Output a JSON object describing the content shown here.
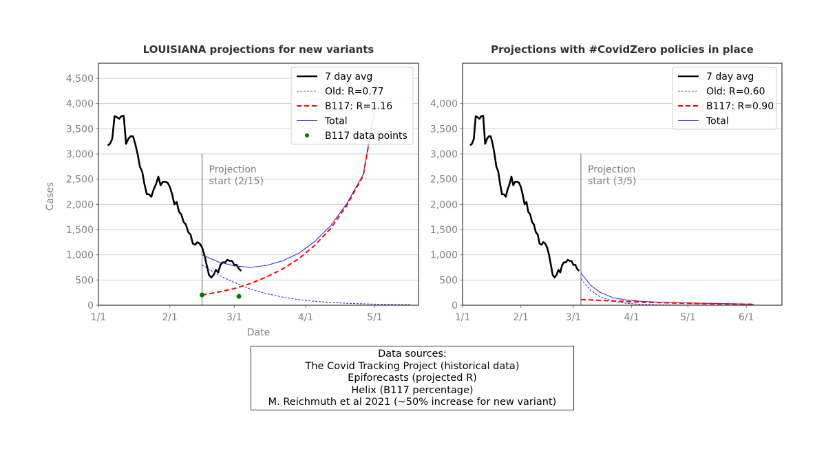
{
  "chart_data": [
    {
      "type": "line",
      "title": "LOUISIANA projections for new variants",
      "xlabel": "Date",
      "ylabel": "Cases",
      "xlim": [
        "2021-01-01",
        "2021-05-20"
      ],
      "ylim": [
        0,
        4800
      ],
      "grid": "y",
      "x_ticks": [
        "1/1",
        "2/1",
        "3/1",
        "4/1",
        "5/1"
      ],
      "y_ticks": [
        "0",
        "500",
        "1,000",
        "1,500",
        "2,000",
        "2,500",
        "3,000",
        "3,500",
        "4,000",
        "4,500"
      ],
      "legend_position": "upper right",
      "series": [
        {
          "name": "7 day avg",
          "style": "solid-thick",
          "color": "#000000",
          "x": [
            "2021-01-05",
            "2021-01-06",
            "2021-01-07",
            "2021-01-08",
            "2021-01-09",
            "2021-01-10",
            "2021-01-11",
            "2021-01-12",
            "2021-01-13",
            "2021-01-14",
            "2021-01-15",
            "2021-01-16",
            "2021-01-17",
            "2021-01-18",
            "2021-01-19",
            "2021-01-20",
            "2021-01-21",
            "2021-01-22",
            "2021-01-23",
            "2021-01-24",
            "2021-01-25",
            "2021-01-26",
            "2021-01-27",
            "2021-01-28",
            "2021-01-29",
            "2021-01-30",
            "2021-01-31",
            "2021-02-01",
            "2021-02-02",
            "2021-02-03",
            "2021-02-04",
            "2021-02-05",
            "2021-02-06",
            "2021-02-07",
            "2021-02-08",
            "2021-02-09",
            "2021-02-10",
            "2021-02-11",
            "2021-02-12",
            "2021-02-13",
            "2021-02-14",
            "2021-02-15",
            "2021-02-16",
            "2021-02-17",
            "2021-02-18",
            "2021-02-19",
            "2021-02-20",
            "2021-02-21",
            "2021-02-22",
            "2021-02-23",
            "2021-02-24",
            "2021-02-25",
            "2021-02-26",
            "2021-02-27",
            "2021-02-28",
            "2021-03-01",
            "2021-03-02",
            "2021-03-03",
            "2021-03-04"
          ],
          "y": [
            3170,
            3200,
            3300,
            3750,
            3730,
            3700,
            3750,
            3760,
            3200,
            3300,
            3350,
            3350,
            3200,
            3000,
            2750,
            2650,
            2400,
            2200,
            2200,
            2150,
            2300,
            2400,
            2550,
            2380,
            2450,
            2450,
            2430,
            2350,
            2200,
            2000,
            2050,
            1850,
            1800,
            1650,
            1600,
            1450,
            1400,
            1220,
            1200,
            1250,
            1220,
            1150,
            1000,
            800,
            600,
            550,
            600,
            700,
            650,
            800,
            850,
            850,
            900,
            880,
            880,
            800,
            800,
            720,
            680
          ]
        },
        {
          "name": "Old: R=0.77",
          "style": "dotted",
          "color": "#3333cc",
          "x": [
            "2021-02-15",
            "2021-02-22",
            "2021-03-01",
            "2021-03-08",
            "2021-03-15",
            "2021-03-22",
            "2021-03-29",
            "2021-04-05",
            "2021-04-12",
            "2021-04-19",
            "2021-04-26",
            "2021-05-03",
            "2021-05-10",
            "2021-05-17"
          ],
          "y": [
            800,
            600,
            450,
            320,
            230,
            160,
            110,
            78,
            55,
            38,
            27,
            19,
            13,
            9
          ]
        },
        {
          "name": "B117: R=1.16",
          "style": "dashed",
          "color": "#ff0000",
          "x": [
            "2021-02-15",
            "2021-02-22",
            "2021-03-01",
            "2021-03-08",
            "2021-03-15",
            "2021-03-22",
            "2021-03-29",
            "2021-04-05",
            "2021-04-12",
            "2021-04-19",
            "2021-04-26",
            "2021-05-01"
          ],
          "y": [
            200,
            260,
            330,
            430,
            560,
            720,
            920,
            1190,
            1530,
            1990,
            2570,
            3880
          ]
        },
        {
          "name": "Total",
          "style": "solid-thin",
          "color": "#3333cc",
          "x": [
            "2021-02-15",
            "2021-02-22",
            "2021-03-01",
            "2021-03-08",
            "2021-03-15",
            "2021-03-22",
            "2021-03-29",
            "2021-04-05",
            "2021-04-12",
            "2021-04-19",
            "2021-04-26",
            "2021-05-01"
          ],
          "y": [
            1000,
            860,
            780,
            750,
            790,
            880,
            1030,
            1268,
            1585,
            2028,
            2597,
            3890
          ]
        },
        {
          "name": "B117 data points",
          "style": "points",
          "color": "#007700",
          "x": [
            "2021-02-15",
            "2021-03-03"
          ],
          "y": [
            205,
            175
          ]
        }
      ],
      "annotations": [
        {
          "type": "vline",
          "x": "2021-02-15",
          "ymax": 3000,
          "color": "#808080",
          "text": [
            "Projection",
            "start (2/15)"
          ]
        }
      ]
    },
    {
      "type": "line",
      "title": "Projections with #CovidZero policies in place",
      "xlabel": "",
      "ylabel": "",
      "xlim": [
        "2021-01-01",
        "2021-06-20"
      ],
      "ylim": [
        0,
        4800
      ],
      "grid": "y",
      "x_ticks": [
        "1/1",
        "2/1",
        "3/1",
        "4/1",
        "5/1",
        "6/1"
      ],
      "y_ticks": [
        "0",
        "500",
        "1,000",
        "1,500",
        "2,000",
        "2,500",
        "3,000",
        "3,500",
        "4,000"
      ],
      "legend_position": "upper right",
      "series": [
        {
          "name": "7 day avg",
          "style": "solid-thick",
          "color": "#000000",
          "x": [
            "2021-01-05",
            "2021-01-06",
            "2021-01-07",
            "2021-01-08",
            "2021-01-09",
            "2021-01-10",
            "2021-01-11",
            "2021-01-12",
            "2021-01-13",
            "2021-01-14",
            "2021-01-15",
            "2021-01-16",
            "2021-01-17",
            "2021-01-18",
            "2021-01-19",
            "2021-01-20",
            "2021-01-21",
            "2021-01-22",
            "2021-01-23",
            "2021-01-24",
            "2021-01-25",
            "2021-01-26",
            "2021-01-27",
            "2021-01-28",
            "2021-01-29",
            "2021-01-30",
            "2021-01-31",
            "2021-02-01",
            "2021-02-02",
            "2021-02-03",
            "2021-02-04",
            "2021-02-05",
            "2021-02-06",
            "2021-02-07",
            "2021-02-08",
            "2021-02-09",
            "2021-02-10",
            "2021-02-11",
            "2021-02-12",
            "2021-02-13",
            "2021-02-14",
            "2021-02-15",
            "2021-02-16",
            "2021-02-17",
            "2021-02-18",
            "2021-02-19",
            "2021-02-20",
            "2021-02-21",
            "2021-02-22",
            "2021-02-23",
            "2021-02-24",
            "2021-02-25",
            "2021-02-26",
            "2021-02-27",
            "2021-02-28",
            "2021-03-01",
            "2021-03-02",
            "2021-03-03",
            "2021-03-04"
          ],
          "y": [
            3170,
            3200,
            3300,
            3750,
            3730,
            3700,
            3750,
            3760,
            3200,
            3300,
            3350,
            3350,
            3200,
            3000,
            2750,
            2650,
            2400,
            2200,
            2200,
            2150,
            2300,
            2400,
            2550,
            2380,
            2450,
            2450,
            2430,
            2350,
            2200,
            2000,
            2050,
            1850,
            1800,
            1650,
            1600,
            1450,
            1400,
            1220,
            1200,
            1250,
            1220,
            1150,
            1000,
            800,
            600,
            550,
            600,
            700,
            650,
            800,
            850,
            850,
            900,
            880,
            880,
            800,
            800,
            720,
            680
          ]
        },
        {
          "name": "Old: R=0.60",
          "style": "dotted",
          "color": "#3333cc",
          "x": [
            "2021-03-05",
            "2021-03-10",
            "2021-03-15",
            "2021-03-22",
            "2021-03-29",
            "2021-04-05",
            "2021-04-15",
            "2021-04-25",
            "2021-05-10",
            "2021-05-25",
            "2021-06-05"
          ],
          "y": [
            520,
            300,
            170,
            80,
            40,
            20,
            8,
            4,
            2,
            1,
            0
          ]
        },
        {
          "name": "B117: R=0.90",
          "style": "dashed",
          "color": "#ff0000",
          "x": [
            "2021-03-05",
            "2021-03-15",
            "2021-03-29",
            "2021-04-12",
            "2021-04-26",
            "2021-05-10",
            "2021-05-24",
            "2021-06-05"
          ],
          "y": [
            115,
            95,
            72,
            55,
            42,
            32,
            24,
            18
          ]
        },
        {
          "name": "Total",
          "style": "solid-thin",
          "color": "#3333cc",
          "x": [
            "2021-03-05",
            "2021-03-10",
            "2021-03-15",
            "2021-03-22",
            "2021-03-29",
            "2021-04-05",
            "2021-04-15",
            "2021-04-25",
            "2021-05-10",
            "2021-05-25",
            "2021-06-05"
          ],
          "y": [
            640,
            400,
            260,
            150,
            105,
            80,
            62,
            50,
            38,
            28,
            20
          ]
        }
      ],
      "annotations": [
        {
          "type": "vline",
          "x": "2021-03-05",
          "ymax": 3000,
          "color": "#808080",
          "text": [
            "Projection",
            "start (3/5)"
          ]
        }
      ]
    }
  ],
  "sources": {
    "lines": [
      "Data sources:",
      "The Covid Tracking Project (historical data)",
      "Epiforecasts (projected R)",
      "Helix (B117 percentage)",
      "M. Reichmuth et al 2021 (~50% increase for new variant)"
    ]
  }
}
